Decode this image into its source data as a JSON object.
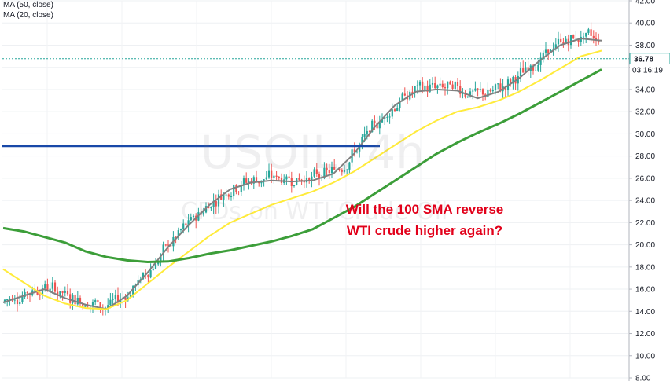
{
  "legend": {
    "line1": "MA (50, close)",
    "line2": "MA (20, close)"
  },
  "watermark": {
    "symbol": "USOIL, 4h",
    "description": "CFDs on WTI Crude Oil"
  },
  "annotation": {
    "line1": "Will the 100 SMA reverse",
    "line2": "WTI crude higher again?"
  },
  "price_label": "36.78",
  "countdown_label": "03:16:19",
  "colors": {
    "up": "#26a69a",
    "down": "#ef5350",
    "sma20": "#808080",
    "sma50": "#ffeb3b",
    "sma100": "#3c9e39",
    "level": "#1848a8",
    "annotation": "#e2001a"
  },
  "chart_data": {
    "type": "candlestick",
    "symbol": "USOIL",
    "timeframe": "4h",
    "ylim": [
      8,
      42
    ],
    "yticks": [
      8,
      10,
      12,
      14,
      16,
      18,
      20,
      22,
      24,
      26,
      28,
      30,
      32,
      34,
      36,
      38,
      40,
      42
    ],
    "horizontal_level": 28.9,
    "last_price": 36.78,
    "series": [
      {
        "name": "MA (20, close)",
        "values": [
          14.8,
          15.4,
          16.0,
          15.2,
          14.6,
          14.2,
          15.4,
          17.5,
          19.8,
          21.8,
          23.6,
          25.0,
          25.6,
          25.8,
          25.7,
          25.8,
          26.4,
          28.2,
          30.6,
          32.6,
          33.8,
          34.0,
          33.9,
          33.2,
          33.8,
          35.0,
          36.6,
          38.0,
          38.6,
          38.4
        ]
      },
      {
        "name": "MA (50, close)",
        "values": [
          17.8,
          16.6,
          15.4,
          14.7,
          14.3,
          14.2,
          15.0,
          16.5,
          18.0,
          19.4,
          20.8,
          22.0,
          22.8,
          23.6,
          24.2,
          24.8,
          25.6,
          26.6,
          27.8,
          29.0,
          30.2,
          31.2,
          32.0,
          32.4,
          33.0,
          33.8,
          34.8,
          35.9,
          37.0,
          37.5
        ]
      },
      {
        "name": "100 SMA",
        "values": [
          21.5,
          21.2,
          20.7,
          20.2,
          19.4,
          18.9,
          18.6,
          18.45,
          18.5,
          18.8,
          19.2,
          19.5,
          19.9,
          20.3,
          20.8,
          21.4,
          22.4,
          23.4,
          24.6,
          25.8,
          27.0,
          28.2,
          29.2,
          30.1,
          30.9,
          31.8,
          32.8,
          33.8,
          34.8,
          35.8
        ]
      }
    ]
  }
}
